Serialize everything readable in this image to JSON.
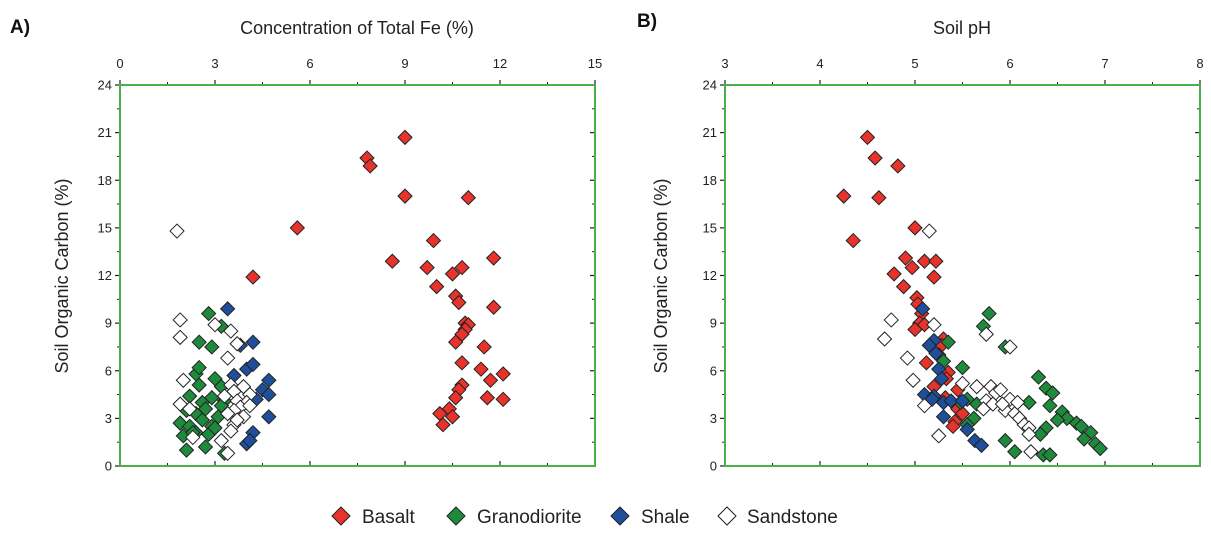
{
  "chart_data": [
    {
      "type": "scatter",
      "panel_label": "A)",
      "xlabel": "Concentration of Total Fe (%)",
      "ylabel": "Soil Organic Carbon (%)",
      "xlim": [
        0,
        15
      ],
      "ylim": [
        0,
        24
      ],
      "xticks": [
        0,
        3,
        6,
        9,
        12,
        15
      ],
      "yticks": [
        0,
        3,
        6,
        9,
        12,
        15,
        18,
        21,
        24
      ],
      "x_axis_position": "top",
      "grid": false,
      "series": [
        {
          "name": "Basalt",
          "color": "#e8332c",
          "points": [
            [
              9.0,
              20.7
            ],
            [
              7.8,
              19.4
            ],
            [
              7.9,
              18.9
            ],
            [
              9.0,
              17.0
            ],
            [
              11.0,
              16.9
            ],
            [
              5.6,
              15.0
            ],
            [
              9.9,
              14.2
            ],
            [
              8.6,
              12.9
            ],
            [
              11.8,
              13.1
            ],
            [
              9.7,
              12.5
            ],
            [
              10.5,
              12.1
            ],
            [
              10.8,
              12.5
            ],
            [
              4.2,
              11.9
            ],
            [
              10.0,
              11.3
            ],
            [
              10.6,
              10.7
            ],
            [
              10.7,
              10.3
            ],
            [
              11.8,
              10.0
            ],
            [
              10.9,
              9.0
            ],
            [
              11.0,
              8.9
            ],
            [
              10.9,
              8.6
            ],
            [
              10.8,
              8.3
            ],
            [
              10.6,
              7.8
            ],
            [
              11.5,
              7.5
            ],
            [
              11.4,
              6.1
            ],
            [
              12.1,
              5.8
            ],
            [
              10.8,
              6.5
            ],
            [
              11.7,
              5.4
            ],
            [
              10.8,
              5.1
            ],
            [
              10.7,
              4.8
            ],
            [
              10.6,
              4.3
            ],
            [
              11.6,
              4.3
            ],
            [
              12.1,
              4.2
            ],
            [
              10.4,
              3.6
            ],
            [
              10.1,
              3.3
            ],
            [
              10.5,
              3.1
            ],
            [
              10.2,
              2.6
            ]
          ]
        },
        {
          "name": "Granodiorite",
          "color": "#1e8b3c",
          "points": [
            [
              2.8,
              9.6
            ],
            [
              3.2,
              8.8
            ],
            [
              2.5,
              7.8
            ],
            [
              2.9,
              7.5
            ],
            [
              2.4,
              5.8
            ],
            [
              3.0,
              5.5
            ],
            [
              2.5,
              5.1
            ],
            [
              3.2,
              5.0
            ],
            [
              2.2,
              4.4
            ],
            [
              2.6,
              4.0
            ],
            [
              2.9,
              4.3
            ],
            [
              3.3,
              4.1
            ],
            [
              2.1,
              3.5
            ],
            [
              2.4,
              3.3
            ],
            [
              2.7,
              3.6
            ],
            [
              3.2,
              3.8
            ],
            [
              1.9,
              2.7
            ],
            [
              2.2,
              2.5
            ],
            [
              2.6,
              2.9
            ],
            [
              2.9,
              2.5
            ],
            [
              3.1,
              3.1
            ],
            [
              2.0,
              1.9
            ],
            [
              2.4,
              2.1
            ],
            [
              2.8,
              2.0
            ],
            [
              2.1,
              1.0
            ],
            [
              2.7,
              1.2
            ],
            [
              3.3,
              0.8
            ],
            [
              2.5,
              6.2
            ],
            [
              2.3,
              2.1
            ],
            [
              3.0,
              2.4
            ]
          ]
        },
        {
          "name": "Shale",
          "color": "#1f4f9c",
          "points": [
            [
              3.4,
              9.9
            ],
            [
              3.8,
              7.6
            ],
            [
              4.2,
              7.8
            ],
            [
              4.0,
              6.1
            ],
            [
              4.2,
              6.4
            ],
            [
              3.6,
              5.7
            ],
            [
              4.7,
              5.4
            ],
            [
              4.5,
              4.8
            ],
            [
              4.7,
              4.5
            ],
            [
              4.3,
              4.2
            ],
            [
              3.8,
              3.8
            ],
            [
              4.7,
              3.1
            ],
            [
              4.2,
              2.1
            ],
            [
              4.0,
              1.4
            ],
            [
              4.1,
              1.6
            ]
          ]
        },
        {
          "name": "Sandstone",
          "color": "#ffffff",
          "points": [
            [
              1.8,
              14.8
            ],
            [
              1.9,
              9.2
            ],
            [
              3.0,
              8.9
            ],
            [
              3.5,
              8.5
            ],
            [
              1.9,
              8.1
            ],
            [
              3.7,
              7.7
            ],
            [
              3.4,
              6.8
            ],
            [
              2.0,
              5.4
            ],
            [
              3.5,
              5.1
            ],
            [
              3.9,
              5.0
            ],
            [
              3.6,
              4.7
            ],
            [
              4.1,
              4.5
            ],
            [
              3.3,
              4.4
            ],
            [
              3.7,
              4.1
            ],
            [
              4.0,
              4.0
            ],
            [
              3.8,
              3.7
            ],
            [
              3.6,
              3.5
            ],
            [
              1.9,
              3.9
            ],
            [
              2.2,
              3.6
            ],
            [
              3.4,
              3.3
            ],
            [
              3.9,
              3.1
            ],
            [
              3.6,
              2.6
            ],
            [
              3.5,
              2.2
            ],
            [
              2.3,
              1.8
            ],
            [
              3.2,
              1.6
            ],
            [
              3.4,
              0.8
            ],
            [
              4.1,
              3.8
            ],
            [
              3.7,
              2.9
            ]
          ]
        }
      ]
    },
    {
      "type": "scatter",
      "panel_label": "B)",
      "xlabel": "Soil pH",
      "ylabel": "Soil Organic Carbon (%)",
      "xlim": [
        3,
        8
      ],
      "ylim": [
        0,
        24
      ],
      "xticks": [
        3,
        4,
        5,
        6,
        7,
        8
      ],
      "yticks": [
        0,
        3,
        6,
        9,
        12,
        15,
        18,
        21,
        24
      ],
      "x_axis_position": "top",
      "grid": false,
      "series": [
        {
          "name": "Basalt",
          "color": "#e8332c",
          "points": [
            [
              4.5,
              20.7
            ],
            [
              4.58,
              19.4
            ],
            [
              4.82,
              18.9
            ],
            [
              4.25,
              17.0
            ],
            [
              4.62,
              16.9
            ],
            [
              5.0,
              15.0
            ],
            [
              4.35,
              14.2
            ],
            [
              4.9,
              13.1
            ],
            [
              5.1,
              12.9
            ],
            [
              4.97,
              12.5
            ],
            [
              5.22,
              12.9
            ],
            [
              4.78,
              12.1
            ],
            [
              5.2,
              11.9
            ],
            [
              4.88,
              11.3
            ],
            [
              5.02,
              10.6
            ],
            [
              5.03,
              10.2
            ],
            [
              5.07,
              9.6
            ],
            [
              5.05,
              9.0
            ],
            [
              5.1,
              8.9
            ],
            [
              5.0,
              8.6
            ],
            [
              5.3,
              8.0
            ],
            [
              5.28,
              7.6
            ],
            [
              5.25,
              7.0
            ],
            [
              5.12,
              6.5
            ],
            [
              5.35,
              5.9
            ],
            [
              5.33,
              5.5
            ],
            [
              5.2,
              5.0
            ],
            [
              5.45,
              4.8
            ],
            [
              5.32,
              4.3
            ],
            [
              5.45,
              3.6
            ],
            [
              5.5,
              3.3
            ],
            [
              5.42,
              2.8
            ],
            [
              5.4,
              2.5
            ]
          ]
        },
        {
          "name": "Granodiorite",
          "color": "#1e8b3c",
          "points": [
            [
              5.78,
              9.6
            ],
            [
              5.72,
              8.8
            ],
            [
              5.35,
              7.8
            ],
            [
              5.95,
              7.5
            ],
            [
              5.3,
              6.6
            ],
            [
              5.5,
              6.2
            ],
            [
              6.3,
              5.6
            ],
            [
              6.38,
              4.9
            ],
            [
              6.45,
              4.6
            ],
            [
              6.2,
              4.0
            ],
            [
              6.42,
              3.8
            ],
            [
              6.55,
              3.4
            ],
            [
              5.55,
              4.2
            ],
            [
              5.65,
              3.9
            ],
            [
              6.6,
              3.0
            ],
            [
              6.7,
              2.7
            ],
            [
              6.75,
              2.5
            ],
            [
              6.5,
              2.9
            ],
            [
              6.38,
              2.4
            ],
            [
              6.32,
              2.0
            ],
            [
              6.85,
              2.1
            ],
            [
              6.78,
              1.7
            ],
            [
              6.9,
              1.4
            ],
            [
              6.95,
              1.1
            ],
            [
              5.95,
              1.6
            ],
            [
              6.05,
              0.9
            ],
            [
              6.35,
              0.7
            ],
            [
              6.42,
              0.7
            ],
            [
              5.62,
              3.0
            ],
            [
              5.55,
              2.6
            ],
            [
              5.48,
              4.0
            ]
          ]
        },
        {
          "name": "Shale",
          "color": "#1f4f9c",
          "points": [
            [
              5.08,
              9.9
            ],
            [
              5.2,
              7.9
            ],
            [
              5.15,
              7.6
            ],
            [
              5.22,
              7.1
            ],
            [
              5.25,
              6.1
            ],
            [
              5.28,
              5.5
            ],
            [
              5.1,
              4.5
            ],
            [
              5.2,
              4.4
            ],
            [
              5.3,
              4.0
            ],
            [
              5.38,
              4.1
            ],
            [
              5.5,
              4.1
            ],
            [
              5.3,
              3.1
            ],
            [
              5.55,
              2.3
            ],
            [
              5.63,
              1.6
            ],
            [
              5.7,
              1.3
            ],
            [
              5.18,
              4.2
            ]
          ]
        },
        {
          "name": "Sandstone",
          "color": "#ffffff",
          "points": [
            [
              5.15,
              14.8
            ],
            [
              4.75,
              9.2
            ],
            [
              5.2,
              8.9
            ],
            [
              5.75,
              8.3
            ],
            [
              4.68,
              8.0
            ],
            [
              6.0,
              7.5
            ],
            [
              4.92,
              6.8
            ],
            [
              5.5,
              5.2
            ],
            [
              5.65,
              5.0
            ],
            [
              5.8,
              5.0
            ],
            [
              4.98,
              5.4
            ],
            [
              5.85,
              4.6
            ],
            [
              5.9,
              4.8
            ],
            [
              6.0,
              4.2
            ],
            [
              5.75,
              4.1
            ],
            [
              5.82,
              3.9
            ],
            [
              5.95,
              3.5
            ],
            [
              5.72,
              3.6
            ],
            [
              6.05,
              3.3
            ],
            [
              6.1,
              3.0
            ],
            [
              6.15,
              2.6
            ],
            [
              6.2,
              2.4
            ],
            [
              5.92,
              3.9
            ],
            [
              6.08,
              4.0
            ],
            [
              5.1,
              3.8
            ],
            [
              5.25,
              1.9
            ],
            [
              6.2,
              2.0
            ],
            [
              6.22,
              0.9
            ]
          ]
        }
      ]
    }
  ],
  "legend": {
    "items": [
      {
        "label": "Basalt",
        "color": "#e8332c"
      },
      {
        "label": "Granodiorite",
        "color": "#1e8b3c"
      },
      {
        "label": "Shale",
        "color": "#1f4f9c"
      },
      {
        "label": "Sandstone",
        "color": "#ffffff"
      }
    ],
    "placement": "bottom-center"
  },
  "colors": {
    "frame": "#4ab04a",
    "marker_stroke": "#222222"
  }
}
